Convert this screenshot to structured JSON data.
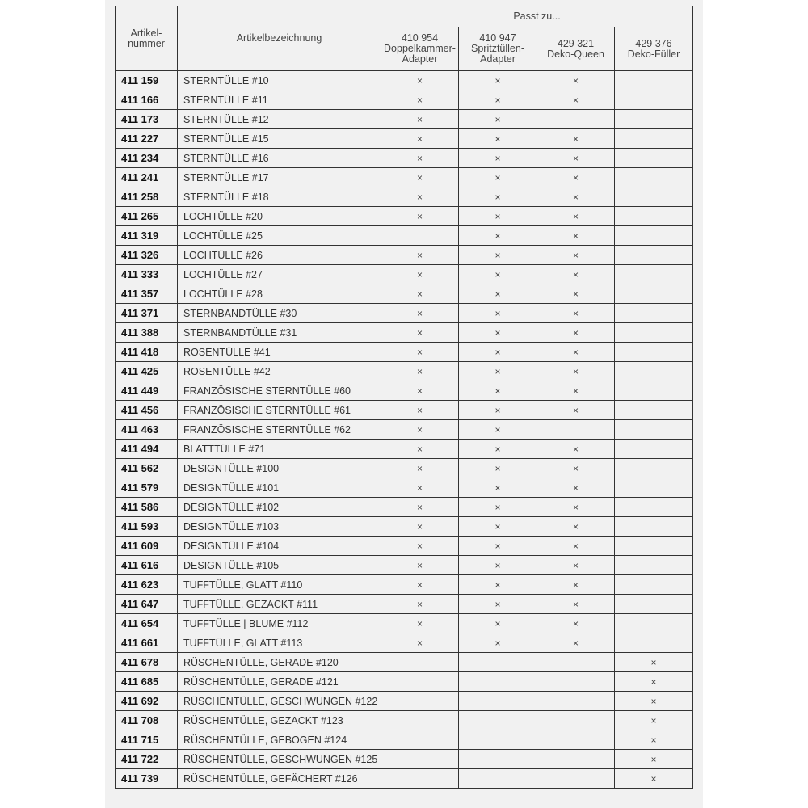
{
  "header": {
    "col_number": "Artikel-\nnummer",
    "col_name": "Artikelbezeichnung",
    "fits_group": "Passt zu...",
    "fits": [
      {
        "number": "410 954",
        "name": "Doppelkammer-\nAdapter"
      },
      {
        "number": "410 947",
        "name": "Spritztüllen-\nAdapter"
      },
      {
        "number": "429 321",
        "name": "Deko-Queen"
      },
      {
        "number": "429 376",
        "name": "Deko-Füller"
      }
    ]
  },
  "rows": [
    {
      "number": "411 159",
      "name": "STERNTÜLLE #10",
      "marks": [
        "×",
        "×",
        "×",
        ""
      ]
    },
    {
      "number": "411 166",
      "name": "STERNTÜLLE #11",
      "marks": [
        "×",
        "×",
        "×",
        ""
      ]
    },
    {
      "number": "411 173",
      "name": "STERNTÜLLE #12",
      "marks": [
        "×",
        "×",
        "",
        ""
      ]
    },
    {
      "number": "411 227",
      "name": "STERNTÜLLE #15",
      "marks": [
        "×",
        "×",
        "×",
        ""
      ]
    },
    {
      "number": "411 234",
      "name": "STERNTÜLLE #16",
      "marks": [
        "×",
        "×",
        "×",
        ""
      ]
    },
    {
      "number": "411 241",
      "name": "STERNTÜLLE #17",
      "marks": [
        "×",
        "×",
        "×",
        ""
      ]
    },
    {
      "number": "411 258",
      "name": "STERNTÜLLE #18",
      "marks": [
        "×",
        "×",
        "×",
        ""
      ]
    },
    {
      "number": "411 265",
      "name": "LOCHTÜLLE #20",
      "marks": [
        "×",
        "×",
        "×",
        ""
      ]
    },
    {
      "number": "411 319",
      "name": "LOCHTÜLLE #25",
      "marks": [
        "",
        "×",
        "×",
        ""
      ]
    },
    {
      "number": "411 326",
      "name": "LOCHTÜLLE #26",
      "marks": [
        "×",
        "×",
        "×",
        ""
      ]
    },
    {
      "number": "411 333",
      "name": "LOCHTÜLLE #27",
      "marks": [
        "×",
        "×",
        "×",
        ""
      ]
    },
    {
      "number": "411 357",
      "name": "LOCHTÜLLE #28",
      "marks": [
        "×",
        "×",
        "×",
        ""
      ]
    },
    {
      "number": "411 371",
      "name": "STERNBANDTÜLLE #30",
      "marks": [
        "×",
        "×",
        "×",
        ""
      ]
    },
    {
      "number": "411 388",
      "name": "STERNBANDTÜLLE #31",
      "marks": [
        "×",
        "×",
        "×",
        ""
      ]
    },
    {
      "number": "411 418",
      "name": "ROSENTÜLLE #41",
      "marks": [
        "×",
        "×",
        "×",
        ""
      ]
    },
    {
      "number": "411 425",
      "name": "ROSENTÜLLE #42",
      "marks": [
        "×",
        "×",
        "×",
        ""
      ]
    },
    {
      "number": "411 449",
      "name": "FRANZÖSISCHE STERNTÜLLE #60",
      "marks": [
        "×",
        "×",
        "×",
        ""
      ]
    },
    {
      "number": "411 456",
      "name": "FRANZÖSISCHE STERNTÜLLE #61",
      "marks": [
        "×",
        "×",
        "×",
        ""
      ]
    },
    {
      "number": "411 463",
      "name": "FRANZÖSISCHE STERNTÜLLE #62",
      "marks": [
        "×",
        "×",
        "",
        ""
      ]
    },
    {
      "number": "411 494",
      "name": "BLATTTÜLLE #71",
      "marks": [
        "×",
        "×",
        "×",
        ""
      ]
    },
    {
      "number": "411 562",
      "name": "DESIGNTÜLLE #100",
      "marks": [
        "×",
        "×",
        "×",
        ""
      ]
    },
    {
      "number": "411 579",
      "name": "DESIGNTÜLLE #101",
      "marks": [
        "×",
        "×",
        "×",
        ""
      ]
    },
    {
      "number": "411 586",
      "name": "DESIGNTÜLLE #102",
      "marks": [
        "×",
        "×",
        "×",
        ""
      ]
    },
    {
      "number": "411 593",
      "name": "DESIGNTÜLLE #103",
      "marks": [
        "×",
        "×",
        "×",
        ""
      ]
    },
    {
      "number": "411 609",
      "name": "DESIGNTÜLLE #104",
      "marks": [
        "×",
        "×",
        "×",
        ""
      ]
    },
    {
      "number": "411 616",
      "name": "DESIGNTÜLLE #105",
      "marks": [
        "×",
        "×",
        "×",
        ""
      ]
    },
    {
      "number": "411 623",
      "name": "TUFFTÜLLE, GLATT #110",
      "marks": [
        "×",
        "×",
        "×",
        ""
      ]
    },
    {
      "number": "411 647",
      "name": "TUFFTÜLLE, GEZACKT #111",
      "marks": [
        "×",
        "×",
        "×",
        ""
      ]
    },
    {
      "number": "411 654",
      "name": "TUFFTÜLLE | BLUME #112",
      "marks": [
        "×",
        "×",
        "×",
        ""
      ]
    },
    {
      "number": "411 661",
      "name": "TUFFTÜLLE, GLATT #113",
      "marks": [
        "×",
        "×",
        "×",
        ""
      ]
    },
    {
      "number": "411 678",
      "name": "RÜSCHENTÜLLE, GERADE #120",
      "marks": [
        "",
        "",
        "",
        "×"
      ]
    },
    {
      "number": "411 685",
      "name": "RÜSCHENTÜLLE, GERADE #121",
      "marks": [
        "",
        "",
        "",
        "×"
      ]
    },
    {
      "number": "411 692",
      "name": "RÜSCHENTÜLLE, GESCHWUNGEN #122",
      "marks": [
        "",
        "",
        "",
        "×"
      ]
    },
    {
      "number": "411 708",
      "name": "RÜSCHENTÜLLE, GEZACKT #123",
      "marks": [
        "",
        "",
        "",
        "×"
      ]
    },
    {
      "number": "411 715",
      "name": "RÜSCHENTÜLLE, GEBOGEN #124",
      "marks": [
        "",
        "",
        "",
        "×"
      ]
    },
    {
      "number": "411 722",
      "name": "RÜSCHENTÜLLE, GESCHWUNGEN #125",
      "marks": [
        "",
        "",
        "",
        "×"
      ]
    },
    {
      "number": "411 739",
      "name": "RÜSCHENTÜLLE, GEFÄCHERT #126",
      "marks": [
        "",
        "",
        "",
        "×"
      ]
    }
  ]
}
